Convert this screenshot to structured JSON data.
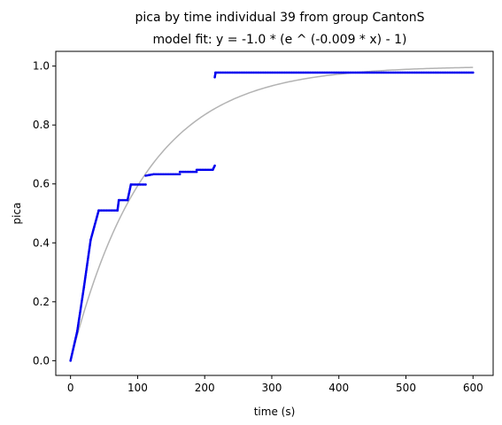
{
  "chart_data": {
    "type": "scatter",
    "title": "pica by time individual 39 from group CantonS",
    "subtitle": "model fit: y = -1.0 * (e ^ (-0.009 * x) - 1)",
    "xlabel": "time (s)",
    "ylabel": "pica",
    "xlim": [
      -22,
      630
    ],
    "ylim": [
      -0.05,
      1.05
    ],
    "xticks": [
      0,
      100,
      200,
      300,
      400,
      500,
      600
    ],
    "yticks": [
      0.0,
      0.2,
      0.4,
      0.6,
      0.8,
      1.0
    ],
    "xtick_labels": [
      "0",
      "100",
      "200",
      "300",
      "400",
      "500",
      "600"
    ],
    "ytick_labels": [
      "0.0",
      "0.2",
      "0.4",
      "0.6",
      "0.8",
      "1.0"
    ],
    "grid": false,
    "colors": {
      "points": "#0000ee",
      "fit": "#b3b3b3",
      "axes": "#000000"
    },
    "series": [
      {
        "name": "observed",
        "kind": "scatter",
        "segments": [
          {
            "x0": 0,
            "x1": 10,
            "y0": 0.0,
            "y1": 0.1
          },
          {
            "x0": 10,
            "x1": 20,
            "y0": 0.1,
            "y1": 0.25
          },
          {
            "x0": 20,
            "x1": 30,
            "y0": 0.25,
            "y1": 0.41
          },
          {
            "x0": 30,
            "x1": 42,
            "y0": 0.41,
            "y1": 0.51
          },
          {
            "x0": 42,
            "x1": 70,
            "y0": 0.51,
            "y1": 0.51
          },
          {
            "x0": 70,
            "x1": 72,
            "y0": 0.51,
            "y1": 0.545
          },
          {
            "x0": 72,
            "x1": 85,
            "y0": 0.545,
            "y1": 0.545
          },
          {
            "x0": 85,
            "x1": 90,
            "y0": 0.545,
            "y1": 0.598
          },
          {
            "x0": 90,
            "x1": 112,
            "y0": 0.598,
            "y1": 0.598
          },
          {
            "x0": 112,
            "x1": 124,
            "y0": 0.628,
            "y1": 0.633
          },
          {
            "x0": 124,
            "x1": 163,
            "y0": 0.633,
            "y1": 0.633
          },
          {
            "x0": 163,
            "x1": 188,
            "y0": 0.641,
            "y1": 0.641
          },
          {
            "x0": 188,
            "x1": 212,
            "y0": 0.648,
            "y1": 0.648
          },
          {
            "x0": 212,
            "x1": 215,
            "y0": 0.648,
            "y1": 0.662
          },
          {
            "x0": 215,
            "x1": 216,
            "y0": 0.962,
            "y1": 0.975
          },
          {
            "x0": 216,
            "x1": 600,
            "y0": 0.978,
            "y1": 0.978
          }
        ]
      },
      {
        "name": "model fit",
        "kind": "line",
        "a": -1.0,
        "k": -0.009,
        "x_range": [
          0,
          600
        ]
      }
    ]
  }
}
